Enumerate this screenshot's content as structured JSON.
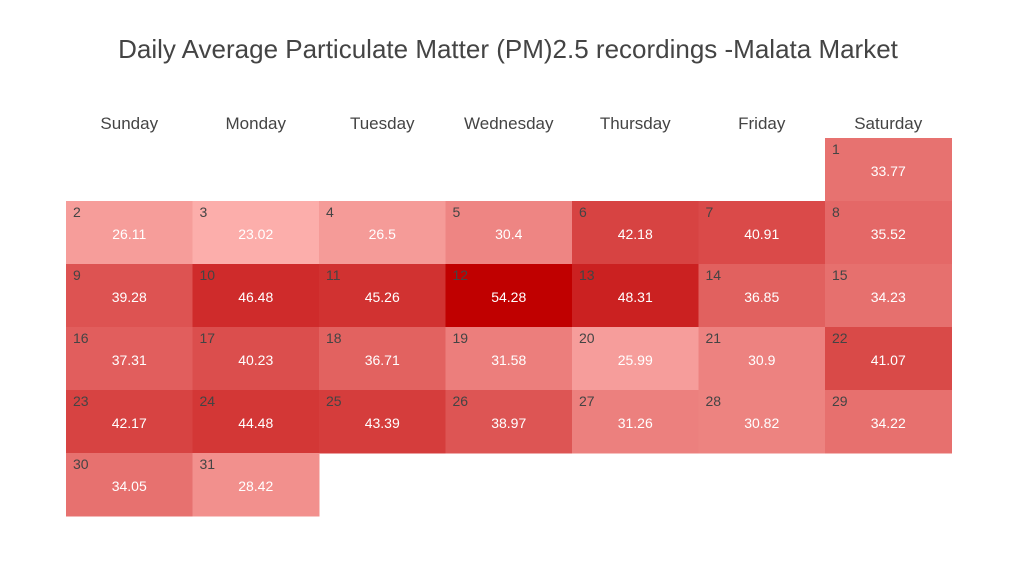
{
  "chart_data": {
    "type": "heatmap",
    "title": "Daily Average Particulate Matter (PM)2.5 recordings -Malata Market",
    "weekdays": [
      "Sunday",
      "Monday",
      "Tuesday",
      "Wednesday",
      "Thursday",
      "Friday",
      "Saturday"
    ],
    "first_weekday_index": 6,
    "days": [
      {
        "day": 1,
        "value": 33.77
      },
      {
        "day": 2,
        "value": 26.11
      },
      {
        "day": 3,
        "value": 23.02
      },
      {
        "day": 4,
        "value": 26.5
      },
      {
        "day": 5,
        "value": 30.4
      },
      {
        "day": 6,
        "value": 42.18
      },
      {
        "day": 7,
        "value": 40.91
      },
      {
        "day": 8,
        "value": 35.52
      },
      {
        "day": 9,
        "value": 39.28
      },
      {
        "day": 10,
        "value": 46.48
      },
      {
        "day": 11,
        "value": 45.26
      },
      {
        "day": 12,
        "value": 54.28
      },
      {
        "day": 13,
        "value": 48.31
      },
      {
        "day": 14,
        "value": 36.85
      },
      {
        "day": 15,
        "value": 34.23
      },
      {
        "day": 16,
        "value": 37.31
      },
      {
        "day": 17,
        "value": 40.23
      },
      {
        "day": 18,
        "value": 36.71
      },
      {
        "day": 19,
        "value": 31.58
      },
      {
        "day": 20,
        "value": 25.99
      },
      {
        "day": 21,
        "value": 30.9
      },
      {
        "day": 22,
        "value": 41.07
      },
      {
        "day": 23,
        "value": 42.17
      },
      {
        "day": 24,
        "value": 44.48
      },
      {
        "day": 25,
        "value": 43.39
      },
      {
        "day": 26,
        "value": 38.97
      },
      {
        "day": 27,
        "value": 31.26
      },
      {
        "day": 28,
        "value": 30.82
      },
      {
        "day": 29,
        "value": 34.22
      },
      {
        "day": 30,
        "value": 34.05
      },
      {
        "day": 31,
        "value": 28.42
      }
    ],
    "color_scale": {
      "low": "#fcaeab",
      "high": "#c00000",
      "min": 23.02,
      "max": 54.28
    }
  }
}
